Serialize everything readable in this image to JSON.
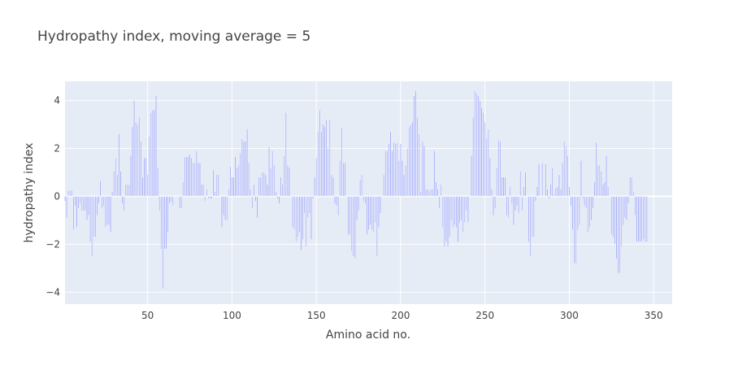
{
  "chart_data": {
    "type": "bar",
    "title": "Hydropathy index, moving average = 5",
    "xlabel": "Amino acid no.",
    "ylabel": "hydropathy index",
    "xlim": [
      1,
      361
    ],
    "ylim": [
      -4.5,
      4.8
    ],
    "x_ticks": [
      50,
      100,
      150,
      200,
      250,
      300,
      350
    ],
    "y_ticks": [
      -4,
      -2,
      0,
      2,
      4
    ],
    "y_tick_labels": [
      "−4",
      "−2",
      "0",
      "2",
      "4"
    ],
    "grid": true,
    "legend": "none",
    "x_start": 1,
    "values": [
      -0.2,
      -0.9,
      0.25,
      0.25,
      0.25,
      -1.4,
      -0.4,
      -1.3,
      -0.5,
      -0.3,
      -0.6,
      -0.6,
      -0.6,
      -1,
      -0.8,
      -1.9,
      -2.5,
      -1.7,
      -1.7,
      -0.8,
      -0.3,
      0.65,
      -0.5,
      -0.4,
      -1.3,
      -1.2,
      -1.2,
      -1.5,
      0.2,
      1.05,
      1.6,
      0.9,
      2.6,
      1.05,
      -0.3,
      -0.6,
      0.5,
      0.5,
      0.5,
      1.7,
      2.9,
      4,
      3.1,
      3,
      3.3,
      2.3,
      0.8,
      1.6,
      1.6,
      0.9,
      2.5,
      3.5,
      3.6,
      3.6,
      4.2,
      1.2,
      -0.6,
      -2.2,
      -3.85,
      -2.2,
      -2.2,
      -1.5,
      -0.3,
      -0.25,
      -0.4,
      0,
      0,
      0,
      -0.5,
      -0.5,
      0.6,
      1.65,
      1.65,
      1.65,
      1.75,
      1.6,
      1.4,
      1.4,
      1.9,
      1.4,
      1.4,
      0.5,
      0.5,
      -0.2,
      0.3,
      -0.1,
      -0.1,
      -0.1,
      1.1,
      0.2,
      0.9,
      0.9,
      0,
      -1.3,
      -0.8,
      -1,
      -1,
      0.3,
      1.25,
      0.8,
      0.8,
      1.65,
      1.2,
      1.3,
      1.8,
      2.4,
      2.3,
      2.3,
      2.8,
      1.4,
      0.3,
      -0.5,
      0.5,
      -0.2,
      -0.9,
      0.8,
      0.8,
      1,
      1,
      0.9,
      0.5,
      2.05,
      1.2,
      1.9,
      1.3,
      0.2,
      -0.1,
      -0.3,
      0.8,
      0.5,
      1.7,
      3.5,
      1.3,
      1.2,
      0,
      -1.3,
      -1.4,
      -1.9,
      -1.7,
      -1.5,
      -2.25,
      -1.8,
      -0.7,
      -2.1,
      -0.9,
      -0.7,
      -1.8,
      -0.1,
      0.8,
      1.6,
      2.7,
      3.6,
      2.7,
      3,
      2.9,
      3.2,
      2,
      3.2,
      0.9,
      0.8,
      -0.3,
      -0.4,
      -0.8,
      1.5,
      2.85,
      1.4,
      1.4,
      0,
      -1.6,
      -1.6,
      -2.3,
      -2.5,
      -2.6,
      -1,
      -0.6,
      0.7,
      0.9,
      -0.2,
      -0.3,
      -1.6,
      -1.4,
      -1.2,
      -1.4,
      -1.5,
      -1.1,
      -2.5,
      -1.3,
      -0.7,
      0,
      0.9,
      1.9,
      1.9,
      2.2,
      2.7,
      1.9,
      2.25,
      2.2,
      2.25,
      1.5,
      2.2,
      1.5,
      0.9,
      1.3,
      2,
      2.9,
      3,
      3.1,
      4.2,
      4.4,
      3.3,
      2.6,
      0.2,
      2.3,
      2.1,
      0.3,
      0.3,
      0.25,
      0.3,
      0.3,
      1.9,
      0.6,
      0.3,
      -0.5,
      0.5,
      -1.3,
      -2.1,
      -1.9,
      -2.1,
      -1.7,
      -1,
      -1.3,
      -1.2,
      -1.3,
      -1.9,
      -1.1,
      -1,
      -1.5,
      -1.1,
      -0.6,
      -1.1,
      0,
      1.7,
      3.3,
      4.4,
      4.3,
      4.2,
      4,
      3.7,
      3.5,
      3.1,
      2.4,
      2.8,
      1.6,
      0.3,
      -0.8,
      -0.5,
      1.2,
      2.35,
      2.3,
      0.8,
      0.8,
      0.8,
      -0.8,
      -0.9,
      0.4,
      -0.3,
      -1.2,
      -0.6,
      -0.4,
      -0.7,
      1.05,
      -0.6,
      0.4,
      1,
      0,
      -1.9,
      -2.5,
      -1.7,
      -1.7,
      -0.2,
      0.4,
      1.35,
      0,
      1.4,
      0,
      1.35,
      0.3,
      -0.1,
      0.5,
      1.2,
      0.1,
      0.35,
      0.4,
      0.9,
      0.3,
      1.4,
      2.3,
      2.1,
      1.7,
      0.4,
      -0.4,
      -1.4,
      -2.8,
      -2.8,
      -1.4,
      -1.2,
      1.5,
      -0.1,
      -0.4,
      -0.5,
      -1.5,
      -1.3,
      -1,
      -0.5,
      0.6,
      2.25,
      1.3,
      1.3,
      1.05,
      0.5,
      0.6,
      1.7,
      0.4,
      0,
      -1.6,
      -1.7,
      -2,
      -2.6,
      -3.2,
      -3.2,
      -2.1,
      -1.2,
      -0.9,
      -1,
      -0.3,
      0.8,
      0.8,
      0.2,
      -0.8,
      -1.9,
      -1.9,
      -1.9,
      -1.9,
      -1.8,
      -1.9,
      -1.9
    ]
  }
}
